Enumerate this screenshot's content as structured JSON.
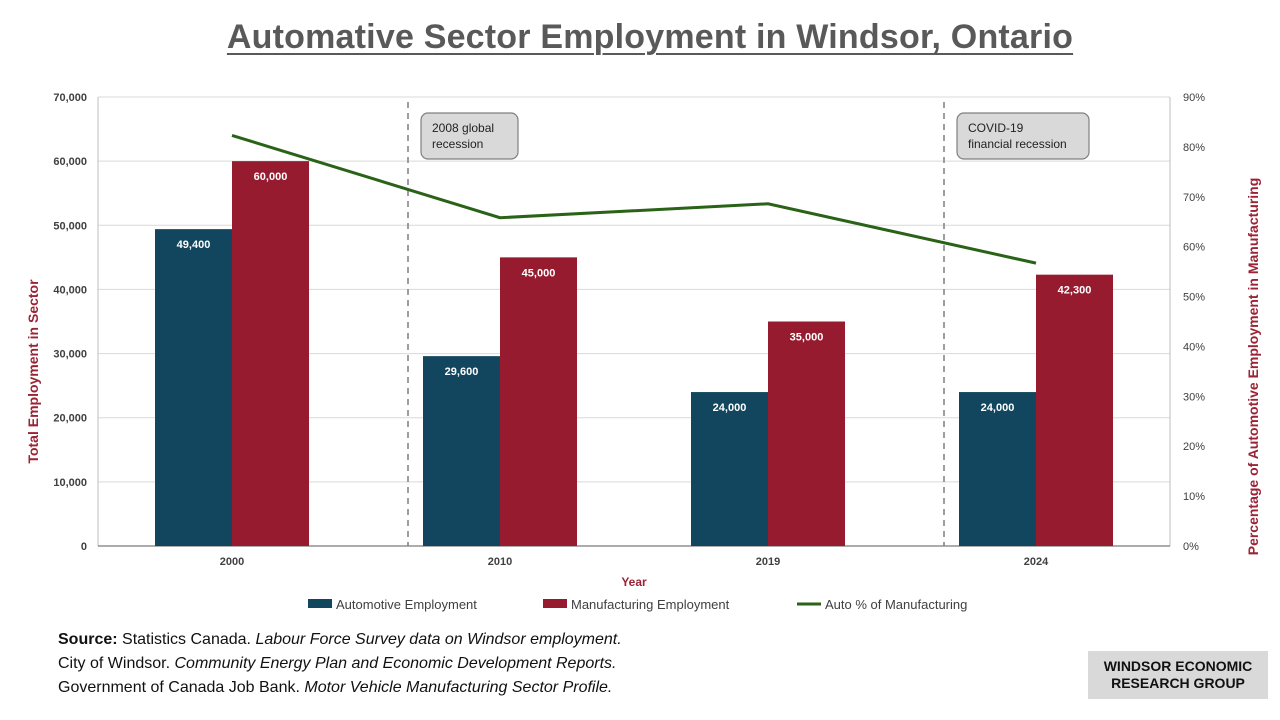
{
  "chart_data": {
    "type": "bar",
    "title": "Automative Sector Employment in Windsor, Ontario",
    "categories": [
      "2000",
      "2010",
      "2019",
      "2024"
    ],
    "xlabel": "Year",
    "ylabel": "Total Employment in Sector",
    "y2label": "Percentage of Automotive Employment in Manufacturing",
    "ylim": [
      0,
      70000
    ],
    "y2lim": [
      0,
      90
    ],
    "yticks": [
      "0",
      "10,000",
      "20,000",
      "30,000",
      "40,000",
      "50,000",
      "60,000",
      "70,000"
    ],
    "y2ticks": [
      "0%",
      "10%",
      "20%",
      "30%",
      "40%",
      "50%",
      "60%",
      "70%",
      "80%",
      "90%"
    ],
    "grid": true,
    "legend_position": "bottom",
    "series": [
      {
        "name": "Automotive Employment",
        "kind": "bar",
        "axis": "left",
        "color": "#12465e",
        "values": [
          49400,
          29600,
          24000,
          24000
        ],
        "labels": [
          "49,400",
          "29,600",
          "24,000",
          "24,000"
        ]
      },
      {
        "name": "Manufacturing Employment",
        "kind": "bar",
        "axis": "left",
        "color": "#971b2f",
        "values": [
          60000,
          45000,
          35000,
          42300
        ],
        "labels": [
          "60,000",
          "45,000",
          "35,000",
          "42,300"
        ]
      },
      {
        "name": "Auto % of Manufacturing",
        "kind": "line",
        "axis": "right",
        "color": "#2a6318",
        "values": [
          82.3,
          65.8,
          68.6,
          56.7
        ]
      }
    ],
    "annotations": [
      {
        "text_lines": [
          "2008 global",
          "recession"
        ],
        "x_between": [
          "2000",
          "2010"
        ]
      },
      {
        "text_lines": [
          "COVID-19",
          "financial recession"
        ],
        "x_between": [
          "2019",
          "2024"
        ]
      }
    ]
  },
  "source": {
    "label": "Source:",
    "lines": [
      {
        "plain": "Statistics Canada. ",
        "italic": "Labour Force Survey data on Windsor employment."
      },
      {
        "plain": "City of Windsor. ",
        "italic": "Community Energy Plan and Economic Development Reports."
      },
      {
        "plain": "Government of Canada Job Bank. ",
        "italic": "Motor Vehicle Manufacturing Sector Profile."
      }
    ]
  },
  "org": {
    "line1": "WINDSOR ECONOMIC",
    "line2": "RESEARCH GROUP"
  }
}
